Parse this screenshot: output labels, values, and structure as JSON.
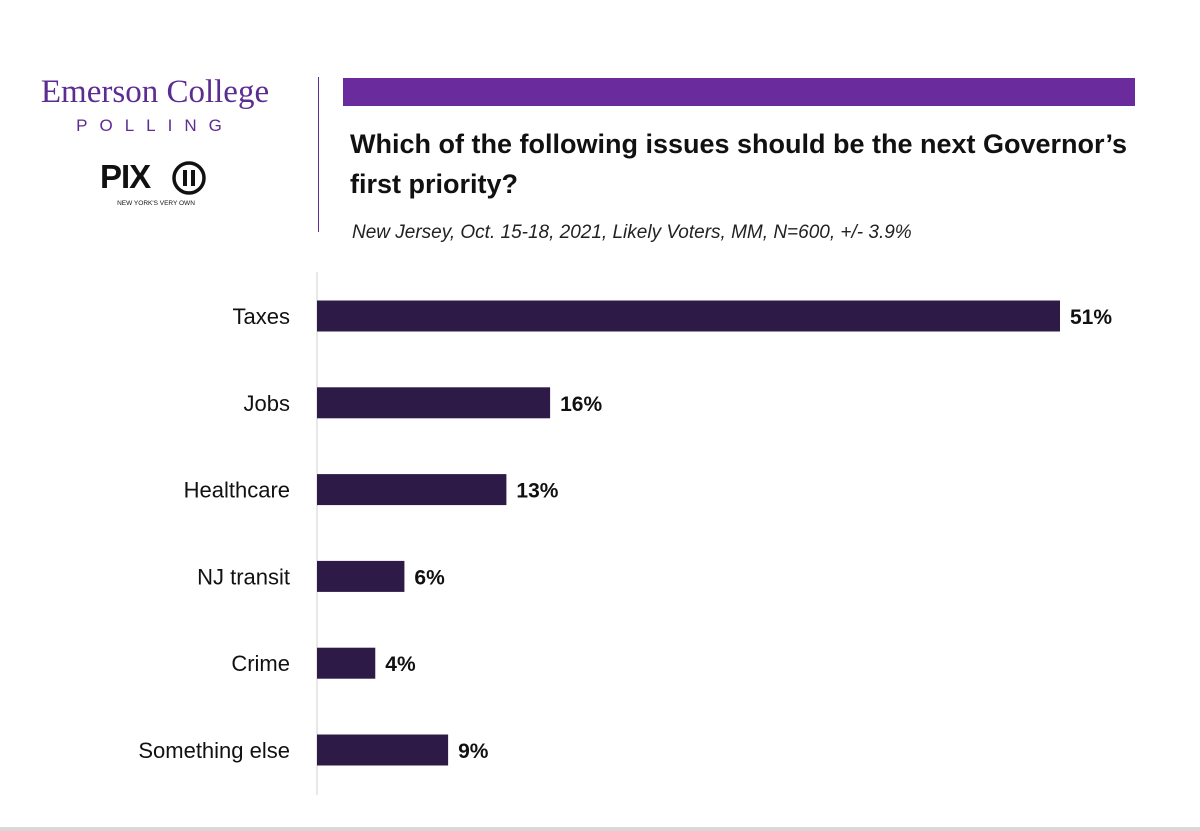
{
  "branding": {
    "org_name": "Emerson College",
    "org_sub": "POLLING",
    "partner_logo_text": "PIX",
    "partner_tagline": "NEW YORK'S VERY OWN"
  },
  "colors": {
    "brand_purple": "#5c2d91",
    "accent_bar": "#6a2c9c",
    "bar_fill": "#2e1a47"
  },
  "chart_data": {
    "type": "bar",
    "orientation": "horizontal",
    "title": "Which of the following issues should be the next Governor’s first priority?",
    "subtitle": "New Jersey, Oct. 15-18, 2021, Likely Voters, MM, N=600, +/- 3.9%",
    "categories": [
      "Taxes",
      "Jobs",
      "Healthcare",
      "NJ transit",
      "Crime",
      "Something else"
    ],
    "values": [
      51,
      16,
      13,
      6,
      4,
      9
    ],
    "data_labels": [
      "51%",
      "16%",
      "13%",
      "6%",
      "4%",
      "9%"
    ],
    "xlim": [
      0,
      51
    ],
    "grid": false
  }
}
